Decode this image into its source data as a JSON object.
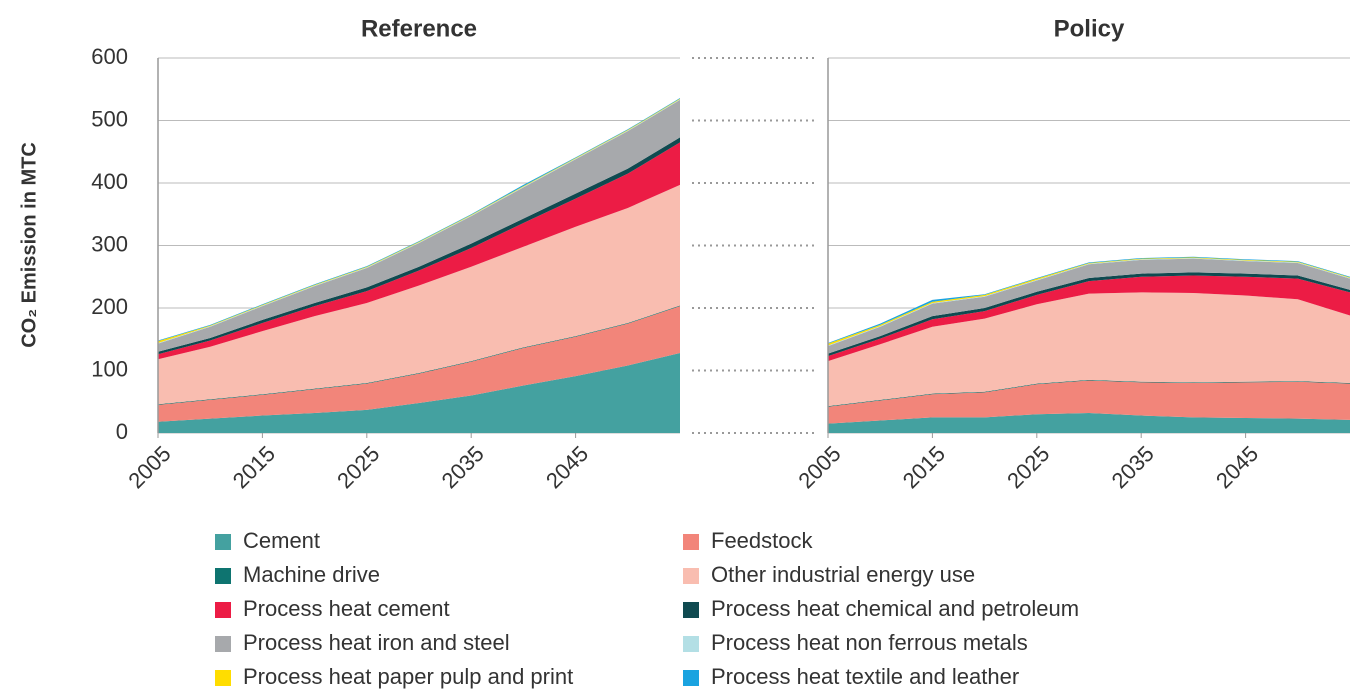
{
  "chart_data": [
    {
      "type": "stacked_area",
      "title": "Reference",
      "y_label": "CO₂ Emission in MTC",
      "x": [
        2005,
        2010,
        2015,
        2020,
        2025,
        2030,
        2035,
        2040,
        2045,
        2050,
        2055
      ],
      "xlim": [
        2005,
        2055
      ],
      "xticks": [
        2005,
        2015,
        2025,
        2035,
        2045
      ],
      "ylim": [
        0,
        600
      ],
      "yticks": [
        0,
        100,
        200,
        300,
        400,
        500,
        600
      ],
      "grid": true,
      "series": [
        {
          "name": "Cement",
          "color": "#44a1a0",
          "values": [
            18,
            23,
            28,
            32,
            37,
            48,
            60,
            76,
            91,
            108,
            128
          ]
        },
        {
          "name": "Feedstock",
          "color": "#f2857a",
          "values": [
            27,
            30,
            33,
            38,
            42,
            47,
            54,
            60,
            63,
            67,
            75
          ]
        },
        {
          "name": "Machine drive",
          "color": "#0e7470",
          "values": [
            1,
            1,
            1,
            1,
            1,
            1,
            1,
            1,
            1,
            1,
            1
          ]
        },
        {
          "name": "Other industrial energy use",
          "color": "#f9bdb0",
          "values": [
            72,
            84,
            101,
            116,
            128,
            140,
            151,
            161,
            175,
            184,
            193
          ]
        },
        {
          "name": "Process heat cement",
          "color": "#ec1c45",
          "values": [
            8,
            10,
            13,
            16,
            19,
            24,
            30,
            38,
            45,
            55,
            68
          ]
        },
        {
          "name": "Process heat chemical and petroleum",
          "color": "#0f4a50",
          "values": [
            4,
            4,
            5,
            5,
            6,
            6,
            7,
            7,
            8,
            8,
            8
          ]
        },
        {
          "name": "Process heat iron and steel",
          "color": "#a7a9ac",
          "values": [
            13,
            18,
            22,
            27,
            31,
            38,
            44,
            50,
            55,
            60,
            60
          ]
        },
        {
          "name": "Process heat non ferrous metals",
          "color": "#b3dfe5",
          "values": [
            1,
            1,
            1,
            1,
            1,
            1,
            1,
            1,
            1,
            1,
            1
          ]
        },
        {
          "name": "Process heat paper pulp and print",
          "color": "#ffdd00",
          "values": [
            3,
            1,
            1,
            1,
            1,
            1,
            1,
            1,
            1,
            1,
            1
          ]
        },
        {
          "name": "Process heat textile and leather",
          "color": "#1aa3e0",
          "values": [
            1,
            1,
            1,
            1,
            1,
            1,
            1,
            2,
            1,
            1,
            1
          ]
        }
      ]
    },
    {
      "type": "stacked_area",
      "title": "Policy",
      "x": [
        2005,
        2010,
        2015,
        2020,
        2025,
        2030,
        2035,
        2040,
        2045,
        2050,
        2055
      ],
      "xlim": [
        2005,
        2055
      ],
      "xticks": [
        2005,
        2015,
        2025,
        2035,
        2045
      ],
      "ylim": [
        0,
        600
      ],
      "yticks": [
        0,
        100,
        200,
        300,
        400,
        500,
        600
      ],
      "grid": true,
      "series": [
        {
          "name": "Cement",
          "color": "#44a1a0",
          "values": [
            15,
            20,
            25,
            25,
            30,
            32,
            28,
            25,
            24,
            23,
            21
          ]
        },
        {
          "name": "Feedstock",
          "color": "#f2857a",
          "values": [
            27,
            32,
            37,
            40,
            48,
            52,
            53,
            55,
            57,
            59,
            58
          ]
        },
        {
          "name": "Machine drive",
          "color": "#0e7470",
          "values": [
            1,
            1,
            1,
            1,
            1,
            1,
            1,
            1,
            1,
            1,
            1
          ]
        },
        {
          "name": "Other industrial energy use",
          "color": "#f9bdb0",
          "values": [
            72,
            89,
            107,
            117,
            127,
            138,
            143,
            143,
            138,
            131,
            108
          ]
        },
        {
          "name": "Process heat cement",
          "color": "#ec1c45",
          "values": [
            8,
            9,
            12,
            12,
            15,
            20,
            25,
            28,
            30,
            33,
            37
          ]
        },
        {
          "name": "Process heat chemical and petroleum",
          "color": "#0f4a50",
          "values": [
            4,
            4,
            5,
            5,
            5,
            5,
            5,
            5,
            5,
            5,
            4
          ]
        },
        {
          "name": "Process heat iron and steel",
          "color": "#a7a9ac",
          "values": [
            12,
            15,
            20,
            18,
            18,
            22,
            22,
            22,
            20,
            20,
            18
          ]
        },
        {
          "name": "Process heat non ferrous metals",
          "color": "#b3dfe5",
          "values": [
            1,
            1,
            1,
            1,
            1,
            1,
            1,
            1,
            1,
            1,
            1
          ]
        },
        {
          "name": "Process heat paper pulp and print",
          "color": "#ffdd00",
          "values": [
            3,
            2,
            2,
            2,
            2,
            1,
            1,
            1,
            1,
            1,
            1
          ]
        },
        {
          "name": "Process heat textile and leather",
          "color": "#1aa3e0",
          "values": [
            1,
            2,
            3,
            1,
            1,
            1,
            1,
            1,
            1,
            1,
            1
          ]
        }
      ]
    }
  ]
}
